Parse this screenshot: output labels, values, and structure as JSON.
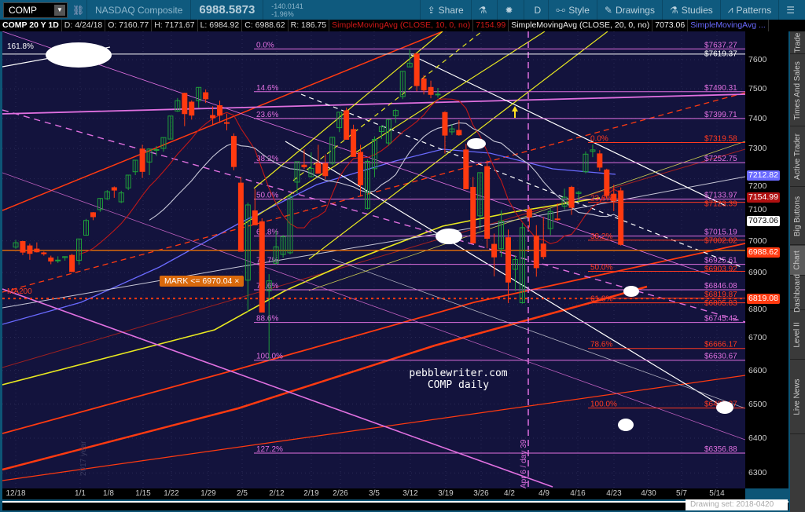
{
  "toolbar": {
    "symbol": "COMP",
    "name": "NASDAQ Composite",
    "last": "6988.5873",
    "change": "-140.0141",
    "change_pct": "-1.96%",
    "buttons": [
      "Share",
      "",
      "",
      "D",
      "Style",
      "Drawings",
      "Studies",
      "Patterns",
      ""
    ],
    "button_icons": [
      "share-icon",
      "flask-icon",
      "gear-icon",
      "period-icon",
      "style-icon",
      "drawings-icon",
      "studies-icon",
      "patterns-icon",
      "menu-icon"
    ]
  },
  "info": {
    "title": "COMP 20 Y 1D",
    "date": "D: 4/24/18",
    "open": "O: 7160.77",
    "high": "H: 7171.67",
    "low": "L: 6984.92",
    "close": "C: 6988.62",
    "range": "R: 186.75",
    "sma10": "SimpleMovingAvg (CLOSE, 10, 0, no)",
    "sma10_val": "7154.99",
    "sma20": "SimpleMovingAvg (CLOSE, 20, 0, no)",
    "sma20_val": "7073.06",
    "sma50": "SimpleMovingAvg ..."
  },
  "side_tabs": [
    "Trade",
    "Times And Sales",
    "Active Trader",
    "Big Buttons",
    "Chart",
    "Dashboard",
    "Level II",
    "Live News"
  ],
  "status": "Drawing set: 2018-0420",
  "watermark": {
    "line1": "pebblewriter.com",
    "line2": "COMP daily"
  },
  "annotations": {
    "mark": "MARK <= 6970.04 ×",
    "vertical": "Apr 6 / day 39",
    "year": "2017 year",
    "ma200": "MA200",
    "fib_ext": "161.8%"
  },
  "colors": {
    "up": "#1fa03a",
    "down": "#ff3a10",
    "sma10": "#c01818",
    "sma20": "#c8c8d8",
    "sma50": "#6a6aff",
    "fib": "#e070e0",
    "fib2": "#ff3a20",
    "bg": "#13133d"
  },
  "chart_data": {
    "type": "candlestick",
    "scale": "log",
    "ylim": [
      6260,
      7700
    ],
    "yticks": [
      6300,
      6400,
      6500,
      6600,
      6700,
      6800,
      6900,
      7000,
      7100,
      7200,
      7300,
      7400,
      7500,
      7600
    ],
    "xticks": [
      "12/18",
      "1/1",
      "1/8",
      "1/15",
      "1/22",
      "1/29",
      "2/5",
      "2/12",
      "2/19",
      "2/26",
      "3/5",
      "3/12",
      "3/19",
      "3/26",
      "4/2",
      "4/9",
      "4/16",
      "4/23",
      "4/30",
      "5/7",
      "5/14"
    ],
    "ohlc": [
      [
        "12/18",
        6980,
        7003,
        6975,
        6994
      ],
      [
        "12/19",
        6998,
        7000,
        6955,
        6964
      ],
      [
        "12/20",
        6984,
        6991,
        6940,
        6960
      ],
      [
        "12/21",
        6974,
        6995,
        6963,
        6965
      ],
      [
        "12/22",
        6962,
        6966,
        6953,
        6959
      ],
      [
        "12/26",
        6946,
        6953,
        6926,
        6936
      ],
      [
        "12/27",
        6937,
        6951,
        6930,
        6939
      ],
      [
        "12/28",
        6947,
        6951,
        6937,
        6950
      ],
      [
        "12/29",
        6954,
        6959,
        6901,
        6903
      ],
      [
        "1/2",
        6938,
        7007,
        6924,
        7006
      ],
      [
        "1/3",
        7018,
        7070,
        7016,
        7065
      ],
      [
        "1/4",
        7090,
        7092,
        7066,
        7077
      ],
      [
        "1/5",
        7100,
        7137,
        7093,
        7136
      ],
      [
        "1/8",
        7135,
        7163,
        7131,
        7158
      ],
      [
        "1/9",
        7171,
        7175,
        7138,
        7163
      ],
      [
        "1/10",
        7125,
        7161,
        7121,
        7154
      ],
      [
        "1/11",
        7170,
        7212,
        7163,
        7212
      ],
      [
        "1/12",
        7223,
        7262,
        7212,
        7261
      ],
      [
        "1/16",
        7298,
        7312,
        7203,
        7224
      ],
      [
        "1/17",
        7255,
        7300,
        7212,
        7298
      ],
      [
        "1/18",
        7294,
        7308,
        7275,
        7296
      ],
      [
        "1/19",
        7300,
        7336,
        7289,
        7336
      ],
      [
        "1/22",
        7331,
        7408,
        7330,
        7408
      ],
      [
        "1/23",
        7425,
        7469,
        7422,
        7460
      ],
      [
        "1/24",
        7485,
        7487,
        7374,
        7416
      ],
      [
        "1/25",
        7455,
        7461,
        7396,
        7411
      ],
      [
        "1/26",
        7460,
        7505,
        7436,
        7505
      ],
      [
        "1/29",
        7487,
        7498,
        7452,
        7466
      ],
      [
        "1/30",
        7410,
        7441,
        7377,
        7402
      ],
      [
        "1/31",
        7443,
        7460,
        7385,
        7411
      ],
      [
        "2/1",
        7386,
        7416,
        7360,
        7385
      ],
      [
        "2/2",
        7340,
        7350,
        7228,
        7240
      ],
      [
        "2/5",
        7186,
        7206,
        6969,
        6967
      ],
      [
        "2/6",
        6876,
        7123,
        6777,
        7115
      ],
      [
        "2/7",
        7096,
        7166,
        7050,
        7051
      ],
      [
        "2/8",
        7061,
        7072,
        6777,
        6777
      ],
      [
        "2/9",
        6843,
        6895,
        6630,
        6874
      ],
      [
        "2/12",
        6929,
        7033,
        6925,
        6981
      ],
      [
        "2/13",
        6957,
        7019,
        6947,
        7013
      ],
      [
        "2/14",
        6962,
        7146,
        6957,
        7143
      ],
      [
        "2/15",
        7189,
        7256,
        7152,
        7256
      ],
      [
        "2/16",
        7245,
        7297,
        7232,
        7239
      ],
      [
        "2/20",
        7207,
        7287,
        7204,
        7234
      ],
      [
        "2/21",
        7250,
        7312,
        7218,
        7218
      ],
      [
        "2/22",
        7250,
        7280,
        7198,
        7210
      ],
      [
        "2/23",
        7251,
        7337,
        7245,
        7337
      ],
      [
        "2/26",
        7369,
        7421,
        7354,
        7421
      ],
      [
        "2/27",
        7426,
        7436,
        7330,
        7330
      ],
      [
        "2/28",
        7363,
        7379,
        7273,
        7273
      ],
      [
        "3/1",
        7287,
        7312,
        7142,
        7180
      ],
      [
        "3/2",
        7104,
        7264,
        7100,
        7257
      ],
      [
        "3/5",
        7233,
        7340,
        7205,
        7330
      ],
      [
        "3/6",
        7356,
        7376,
        7331,
        7372
      ],
      [
        "3/7",
        7318,
        7398,
        7309,
        7396
      ],
      [
        "3/8",
        7409,
        7432,
        7385,
        7427
      ],
      [
        "3/9",
        7474,
        7560,
        7465,
        7560
      ],
      [
        "3/12",
        7575,
        7637,
        7575,
        7588
      ],
      [
        "3/13",
        7620,
        7623,
        7492,
        7511
      ],
      [
        "3/14",
        7534,
        7547,
        7481,
        7496
      ],
      [
        "3/15",
        7505,
        7528,
        7468,
        7481
      ],
      [
        "3/16",
        7481,
        7503,
        7470,
        7482
      ],
      [
        "3/19",
        7420,
        7424,
        7283,
        7344
      ],
      [
        "3/20",
        7355,
        7381,
        7345,
        7365
      ],
      [
        "3/21",
        7360,
        7394,
        7342,
        7345
      ],
      [
        "3/22",
        7295,
        7315,
        7166,
        7167
      ],
      [
        "3/23",
        7172,
        7206,
        6992,
        6993
      ],
      [
        "3/26",
        7080,
        7220,
        7035,
        7220
      ],
      [
        "3/27",
        7240,
        7260,
        6976,
        7008
      ],
      [
        "3/28",
        6989,
        7023,
        6888,
        6949
      ],
      [
        "3/29",
        6975,
        7097,
        6949,
        7063
      ],
      [
        "4/2",
        7010,
        7036,
        6805,
        6870
      ],
      [
        "4/3",
        6910,
        6954,
        6842,
        6941
      ],
      [
        "4/4",
        6806,
        7057,
        6803,
        7042
      ],
      [
        "4/5",
        7100,
        7109,
        7043,
        7076
      ],
      [
        "4/6",
        7016,
        7050,
        6887,
        6915
      ],
      [
        "4/9",
        6990,
        7076,
        6942,
        6950
      ],
      [
        "4/10",
        7039,
        7105,
        7018,
        7094
      ],
      [
        "4/11",
        7070,
        7120,
        7063,
        7069
      ],
      [
        "4/12",
        7111,
        7168,
        7101,
        7140
      ],
      [
        "4/13",
        7172,
        7177,
        7083,
        7107
      ],
      [
        "4/16",
        7152,
        7160,
        7123,
        7156
      ],
      [
        "4/17",
        7223,
        7290,
        7218,
        7281
      ],
      [
        "4/18",
        7290,
        7313,
        7271,
        7295
      ],
      [
        "4/19",
        7282,
        7294,
        7225,
        7238
      ],
      [
        "4/20",
        7229,
        7233,
        7132,
        7146
      ],
      [
        "4/23",
        7150,
        7181,
        7095,
        7128
      ],
      [
        "4/24",
        7160.77,
        7171.67,
        6984.92,
        6988.62
      ]
    ],
    "fib_levels": [
      {
        "pct": "0.0%",
        "price": 7637.27,
        "label": "$7637.27",
        "set": 1
      },
      {
        "pct": "",
        "price": 7619.37,
        "label": "$7619.37",
        "set": 0
      },
      {
        "pct": "14.6%",
        "price": 7490.31,
        "label": "$7490.31",
        "set": 1
      },
      {
        "pct": "23.6%",
        "price": 7399.71,
        "label": "$7399.71",
        "set": 1
      },
      {
        "pct": "0.0%",
        "price": 7319.58,
        "label": "$7319.58",
        "set": 2
      },
      {
        "pct": "38.2%",
        "price": 7252.75,
        "label": "$7252.75",
        "set": 1
      },
      {
        "pct": "50.0%",
        "price": 7133.97,
        "label": "$7133.97",
        "set": 1
      },
      {
        "pct": "23.6%",
        "price": 7123.39,
        "label": "$7123.39",
        "set": 2
      },
      {
        "pct": "61.8%",
        "price": 7015.19,
        "label": "$7015.19",
        "set": 1
      },
      {
        "pct": "38.2%",
        "price": 7002.02,
        "label": "$7002.02",
        "set": 2
      },
      {
        "pct": "70.7%",
        "price": 6925.61,
        "label": "$6925.61",
        "set": 1
      },
      {
        "pct": "50.0%",
        "price": 6903.92,
        "label": "$6903.92",
        "set": 2
      },
      {
        "pct": "78.6%",
        "price": 6846.08,
        "label": "$6846.08",
        "set": 1
      },
      {
        "pct": "",
        "price": 6819.87,
        "label": "$6819.87",
        "set": 2
      },
      {
        "pct": "61.8%",
        "price": 6805.83,
        "label": "$6805.83",
        "set": 2
      },
      {
        "pct": "88.6%",
        "price": 6745.42,
        "label": "$6745.42",
        "set": 1
      },
      {
        "pct": "78.6%",
        "price": 6666.17,
        "label": "$6666.17",
        "set": 2
      },
      {
        "pct": "100.0%",
        "price": 6630.67,
        "label": "$6630.67",
        "set": 1
      },
      {
        "pct": "100.0%",
        "price": 6488.27,
        "label": "$6488.27",
        "set": 2
      },
      {
        "pct": "127.2%",
        "price": 6356.88,
        "label": "$6356.88",
        "set": 1
      }
    ],
    "axis_badges": [
      {
        "value": "7212.82",
        "price": 7212.82,
        "bg": "#6a6aff",
        "fg": "#fff"
      },
      {
        "value": "7154.99",
        "price": 7154.99,
        "bg": "#b01010",
        "fg": "#fff"
      },
      {
        "value": "7073.06",
        "price": 7073.06,
        "bg": "#ffffff",
        "fg": "#000"
      },
      {
        "value": "6988.62",
        "price": 6988.62,
        "bg": "#ff3a10",
        "fg": "#fff"
      },
      {
        "value": "6819.08",
        "price": 6819.08,
        "bg": "#ff3a10",
        "fg": "#fff"
      }
    ],
    "mark_price": 6970.04,
    "dotted_price": 6819.08
  }
}
